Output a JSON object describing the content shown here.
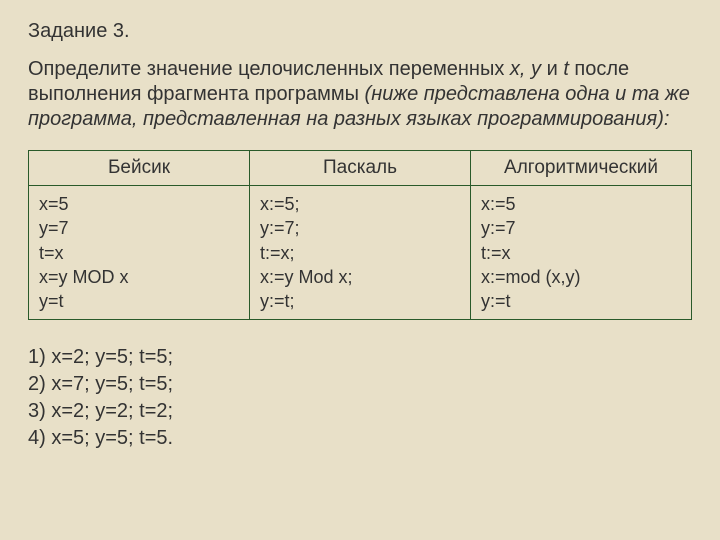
{
  "title": "Задание 3.",
  "problem_p1": "Определите значение целочисленных переменных ",
  "problem_vars": "x, y",
  "problem_and": " и ",
  "problem_t": "t",
  "problem_p2": " после выполнения фрагмента программы ",
  "problem_italic": "(ниже представлена одна и та же программа, представленная на разных языках программирования):",
  "table": {
    "headers": [
      "Бейсик",
      "Паскаль",
      "Алгоритмический"
    ],
    "cols": [
      [
        "x=5",
        "y=7",
        "t=x",
        "x=y MOD x",
        "y=t"
      ],
      [
        "x:=5;",
        "y:=7;",
        "t:=x;",
        "x:=y Mod x;",
        "y:=t;"
      ],
      [
        "x:=5",
        "y:=7",
        "t:=x",
        "x:=mod (x,y)",
        "y:=t"
      ]
    ]
  },
  "answers": [
    "1) x=2; y=5; t=5;",
    "2) x=7; y=5; t=5;",
    "3) x=2; y=2; t=2;",
    "4) x=5; y=5; t=5."
  ],
  "colors": {
    "background": "#e8e0c8",
    "border": "#2a5a2a",
    "text": "#333333"
  }
}
